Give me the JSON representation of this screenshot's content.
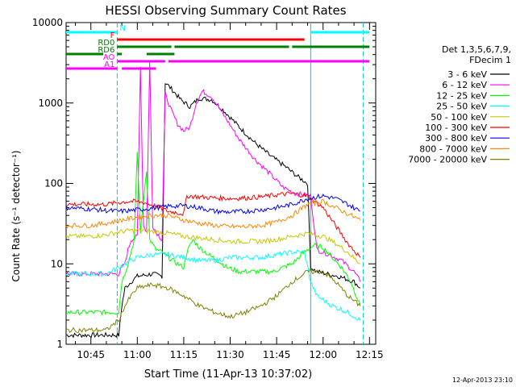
{
  "chart_data": {
    "type": "line",
    "title": "HESSI Observing Summary Count Rates",
    "xlabel": "Start Time (11-Apr-13 10:37:02)",
    "ylabel": "Count Rate (s⁻¹ detector⁻¹)",
    "footer": "12-Apr-2013 23:10",
    "y_scale": "log",
    "ylim": [
      1,
      10000
    ],
    "y_ticks": [
      "1",
      "10",
      "100",
      "1000",
      "10000"
    ],
    "xlim": [
      "10:37",
      "12:17"
    ],
    "x_ticks": [
      "10:45",
      "11:00",
      "11:15",
      "11:30",
      "11:45",
      "12:00",
      "12:15"
    ],
    "legend_title": [
      "Det 1,3,5,6,7,9,",
      "FDecim 1"
    ],
    "legend_position": "right",
    "series": [
      {
        "name": "3 - 6 keV",
        "color": "#000000",
        "points": [
          [
            "10:37",
            1.3
          ],
          [
            "10:54",
            1.3
          ],
          [
            "10:55",
            3
          ],
          [
            "10:56",
            5
          ],
          [
            "10:58",
            6
          ],
          [
            "11:00",
            7
          ],
          [
            "11:05",
            7.5
          ],
          [
            "11:08",
            7
          ],
          [
            "11:09",
            1800
          ],
          [
            "11:11",
            1500
          ],
          [
            "11:14",
            1100
          ],
          [
            "11:17",
            900
          ],
          [
            "11:20",
            1150
          ],
          [
            "11:24",
            1100
          ],
          [
            "11:28",
            800
          ],
          [
            "11:33",
            500
          ],
          [
            "11:38",
            320
          ],
          [
            "11:43",
            220
          ],
          [
            "11:48",
            160
          ],
          [
            "11:52",
            120
          ],
          [
            "11:55",
            100
          ],
          [
            "11:56",
            9
          ],
          [
            "11:58",
            8
          ],
          [
            "12:05",
            7
          ],
          [
            "12:10",
            6
          ],
          [
            "12:12",
            5
          ]
        ]
      },
      {
        "name": "6 - 12 keV",
        "color": "#ff00ff",
        "points": [
          [
            "10:37",
            7.5
          ],
          [
            "10:54",
            7.5
          ],
          [
            "10:55",
            9
          ],
          [
            "10:56",
            10
          ],
          [
            "10:57",
            15
          ],
          [
            "10:58",
            20
          ],
          [
            "11:00",
            22
          ],
          [
            "11:01",
            3000
          ],
          [
            "11:02",
            30
          ],
          [
            "11:03",
            25
          ],
          [
            "11:04",
            3200
          ],
          [
            "11:05",
            30
          ],
          [
            "11:06",
            25
          ],
          [
            "11:08",
            20
          ],
          [
            "11:09",
            1300
          ],
          [
            "11:11",
            800
          ],
          [
            "11:13",
            550
          ],
          [
            "11:15",
            450
          ],
          [
            "11:17",
            500
          ],
          [
            "11:19",
            1000
          ],
          [
            "11:21",
            1400
          ],
          [
            "11:24",
            1200
          ],
          [
            "11:28",
            700
          ],
          [
            "11:33",
            350
          ],
          [
            "11:38",
            200
          ],
          [
            "11:43",
            130
          ],
          [
            "11:47",
            90
          ],
          [
            "11:51",
            75
          ],
          [
            "11:56",
            70
          ],
          [
            "11:58",
            15
          ],
          [
            "12:02",
            13
          ],
          [
            "12:06",
            11
          ],
          [
            "12:10",
            8
          ],
          [
            "12:12",
            6
          ]
        ]
      },
      {
        "name": "12 - 25 keV",
        "color": "#00ff00",
        "points": [
          [
            "10:37",
            2.5
          ],
          [
            "10:54",
            2.5
          ],
          [
            "10:55",
            6
          ],
          [
            "10:57",
            10
          ],
          [
            "10:59",
            20
          ],
          [
            "11:00",
            250
          ],
          [
            "11:01",
            25
          ],
          [
            "11:03",
            150
          ],
          [
            "11:04",
            20
          ],
          [
            "11:06",
            15
          ],
          [
            "11:08",
            14
          ],
          [
            "11:10",
            12
          ],
          [
            "11:13",
            10
          ],
          [
            "11:15",
            9
          ],
          [
            "11:16",
            14
          ],
          [
            "11:18",
            20
          ],
          [
            "11:20",
            16
          ],
          [
            "11:23",
            13
          ],
          [
            "11:26",
            11
          ],
          [
            "11:29",
            9
          ],
          [
            "11:33",
            8
          ],
          [
            "11:38",
            8
          ],
          [
            "11:44",
            8
          ],
          [
            "11:47",
            9
          ],
          [
            "11:50",
            10
          ],
          [
            "11:54",
            14
          ],
          [
            "11:57",
            17
          ],
          [
            "12:00",
            16
          ],
          [
            "12:03",
            12
          ],
          [
            "12:06",
            9
          ],
          [
            "12:09",
            6
          ],
          [
            "12:12",
            3
          ]
        ]
      },
      {
        "name": "25 - 50 keV",
        "color": "#00ffff",
        "points": [
          [
            "10:37",
            7.5
          ],
          [
            "10:50",
            7.5
          ],
          [
            "10:54",
            9
          ],
          [
            "10:56",
            10
          ],
          [
            "10:58",
            11
          ],
          [
            "11:00",
            12
          ],
          [
            "11:05",
            13
          ],
          [
            "11:10",
            13
          ],
          [
            "11:15",
            12
          ],
          [
            "11:20",
            11
          ],
          [
            "11:25",
            11
          ],
          [
            "11:30",
            12
          ],
          [
            "11:35",
            12
          ],
          [
            "11:40",
            12
          ],
          [
            "11:45",
            13
          ],
          [
            "11:50",
            14
          ],
          [
            "11:54",
            14
          ],
          [
            "11:56",
            6
          ],
          [
            "11:58",
            4
          ],
          [
            "12:03",
            3
          ],
          [
            "12:08",
            2.5
          ],
          [
            "12:12",
            2
          ]
        ]
      },
      {
        "name": "50 - 100 keV",
        "color": "#c8c800",
        "points": [
          [
            "10:37",
            22
          ],
          [
            "10:45",
            22
          ],
          [
            "10:50",
            23
          ],
          [
            "10:54",
            25
          ],
          [
            "10:58",
            26
          ],
          [
            "11:02",
            26
          ],
          [
            "11:06",
            25
          ],
          [
            "11:10",
            24
          ],
          [
            "11:15",
            22
          ],
          [
            "11:20",
            21
          ],
          [
            "11:25",
            20
          ],
          [
            "11:30",
            19
          ],
          [
            "11:35",
            19
          ],
          [
            "11:40",
            19
          ],
          [
            "11:45",
            20
          ],
          [
            "11:50",
            22
          ],
          [
            "11:55",
            24
          ],
          [
            "12:00",
            22
          ],
          [
            "12:04",
            18
          ],
          [
            "12:08",
            14
          ],
          [
            "12:12",
            10
          ]
        ]
      },
      {
        "name": "100 - 300 keV",
        "color": "#ff0000",
        "points": [
          [
            "10:37",
            55
          ],
          [
            "10:50",
            55
          ],
          [
            "10:54",
            58
          ],
          [
            "10:58",
            60
          ],
          [
            "11:02",
            58
          ],
          [
            "11:06",
            52
          ],
          [
            "11:10",
            45
          ],
          [
            "11:15",
            42
          ],
          [
            "11:16",
            70
          ],
          [
            "11:20",
            68
          ],
          [
            "11:25",
            66
          ],
          [
            "11:30",
            65
          ],
          [
            "11:35",
            66
          ],
          [
            "11:40",
            68
          ],
          [
            "11:45",
            72
          ],
          [
            "11:50",
            75
          ],
          [
            "11:55",
            70
          ],
          [
            "12:00",
            50
          ],
          [
            "12:04",
            30
          ],
          [
            "12:08",
            18
          ],
          [
            "12:12",
            12
          ]
        ]
      },
      {
        "name": "300 - 800 keV",
        "color": "#0000ff",
        "points": [
          [
            "10:37",
            50
          ],
          [
            "10:45",
            48
          ],
          [
            "10:50",
            46
          ],
          [
            "10:54",
            45
          ],
          [
            "10:58",
            46
          ],
          [
            "11:02",
            48
          ],
          [
            "11:06",
            50
          ],
          [
            "11:10",
            52
          ],
          [
            "11:15",
            53
          ],
          [
            "11:20",
            50
          ],
          [
            "11:25",
            45
          ],
          [
            "11:30",
            44
          ],
          [
            "11:35",
            45
          ],
          [
            "11:40",
            47
          ],
          [
            "11:45",
            50
          ],
          [
            "11:50",
            55
          ],
          [
            "11:55",
            65
          ],
          [
            "12:00",
            70
          ],
          [
            "12:04",
            65
          ],
          [
            "12:08",
            55
          ],
          [
            "12:12",
            45
          ]
        ]
      },
      {
        "name": "800 - 7000 keV",
        "color": "#ff8800",
        "points": [
          [
            "10:37",
            30
          ],
          [
            "10:45",
            30
          ],
          [
            "10:50",
            32
          ],
          [
            "10:55",
            35
          ],
          [
            "11:00",
            38
          ],
          [
            "11:05",
            40
          ],
          [
            "11:10",
            40
          ],
          [
            "11:15",
            35
          ],
          [
            "11:20",
            32
          ],
          [
            "11:25",
            30
          ],
          [
            "11:30",
            29
          ],
          [
            "11:35",
            29
          ],
          [
            "11:40",
            30
          ],
          [
            "11:45",
            33
          ],
          [
            "11:50",
            40
          ],
          [
            "11:55",
            55
          ],
          [
            "12:00",
            60
          ],
          [
            "12:04",
            50
          ],
          [
            "12:08",
            42
          ],
          [
            "12:12",
            35
          ]
        ]
      },
      {
        "name": "7000 - 20000 keV",
        "color": "#808000",
        "points": [
          [
            "10:37",
            1.5
          ],
          [
            "10:50",
            1.5
          ],
          [
            "10:54",
            2
          ],
          [
            "10:56",
            3
          ],
          [
            "10:58",
            4
          ],
          [
            "11:00",
            5
          ],
          [
            "11:05",
            5.5
          ],
          [
            "11:10",
            5
          ],
          [
            "11:15",
            4
          ],
          [
            "11:20",
            3
          ],
          [
            "11:25",
            2.5
          ],
          [
            "11:30",
            2.2
          ],
          [
            "11:35",
            2.5
          ],
          [
            "11:40",
            3
          ],
          [
            "11:45",
            4
          ],
          [
            "11:50",
            6
          ],
          [
            "11:55",
            8
          ],
          [
            "12:00",
            8
          ],
          [
            "12:04",
            6
          ],
          [
            "12:08",
            4
          ],
          [
            "12:12",
            3
          ]
        ]
      }
    ],
    "vertical_markers": [
      {
        "time": "10:53.5",
        "color": "#00c8c8",
        "style": "dashed"
      },
      {
        "time": "11:56",
        "color": "#00c8c8",
        "style": "solid"
      },
      {
        "time": "12:13",
        "color": "#00c8c8",
        "style": "dashed"
      }
    ],
    "flag_bars": [
      {
        "label": "N",
        "color": "#00ffff",
        "segments": [
          [
            "10:37",
            "10:53.5"
          ],
          [
            "11:56",
            "12:15"
          ]
        ]
      },
      {
        "label": "F",
        "color": "#ff0000",
        "segments": [
          [
            "10:53.5",
            "11:54"
          ]
        ]
      },
      {
        "label": "RD0",
        "color": "#008000",
        "segments": [
          [
            "10:53.5",
            "11:11"
          ],
          [
            "11:12",
            "11:49"
          ],
          [
            "11:50",
            "12:15"
          ]
        ]
      },
      {
        "label": "RD6",
        "color": "#008000",
        "segments": [
          [
            "10:37",
            "10:49"
          ],
          [
            "10:53.5",
            "10:55"
          ],
          [
            "11:03",
            "11:12"
          ]
        ]
      },
      {
        "label": "AO",
        "color": "#ff00ff",
        "segments": [
          [
            "10:53.5",
            "11:09"
          ],
          [
            "11:10",
            "12:15"
          ]
        ]
      },
      {
        "label": "A1",
        "color": "#ff00ff",
        "segments": [
          [
            "10:37",
            "10:53.5"
          ],
          [
            "10:55",
            "11:06"
          ]
        ]
      }
    ]
  }
}
